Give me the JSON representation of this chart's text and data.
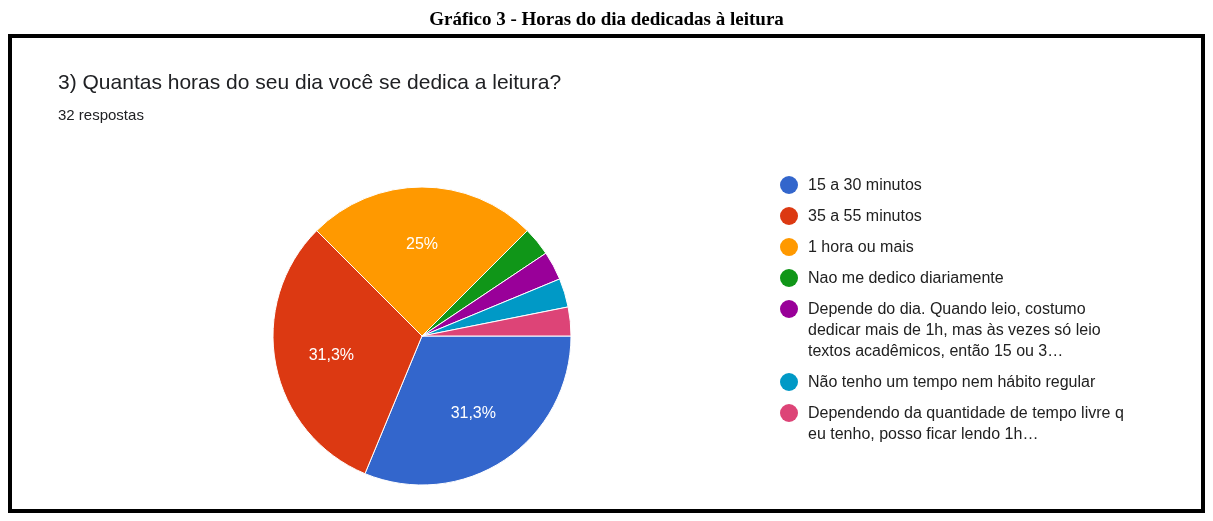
{
  "chart_data": {
    "type": "pie",
    "title": "Gráfico 3 - Horas do dia dedicadas à leitura",
    "subtitle": "3) Quantas horas do seu dia você se dedica a leitura?",
    "annotations": [
      "32 respostas"
    ],
    "categories": [
      "15 a 30 minutos",
      "35 a 55 minutos",
      "1 hora ou mais",
      "Nao me dedico diariamente",
      "Depende do dia. Quando leio, costumo dedicar mais de 1h, mas às vezes só leio textos acadêmicos, então 15 ou 3…",
      "Não tenho um tempo nem hábito regular",
      "Dependendo da quantidade de tempo livre q eu tenho, posso ficar lendo 1h…"
    ],
    "values": [
      31.25,
      31.25,
      25,
      3.125,
      3.125,
      3.125,
      3.125
    ],
    "value_labels": [
      "31,3%",
      "31,3%",
      "25%",
      null,
      null,
      null,
      null
    ],
    "colors": [
      "#3366cc",
      "#dc3912",
      "#ff9900",
      "#109618",
      "#990099",
      "#0099c6",
      "#dd4477"
    ],
    "legend": "right"
  }
}
